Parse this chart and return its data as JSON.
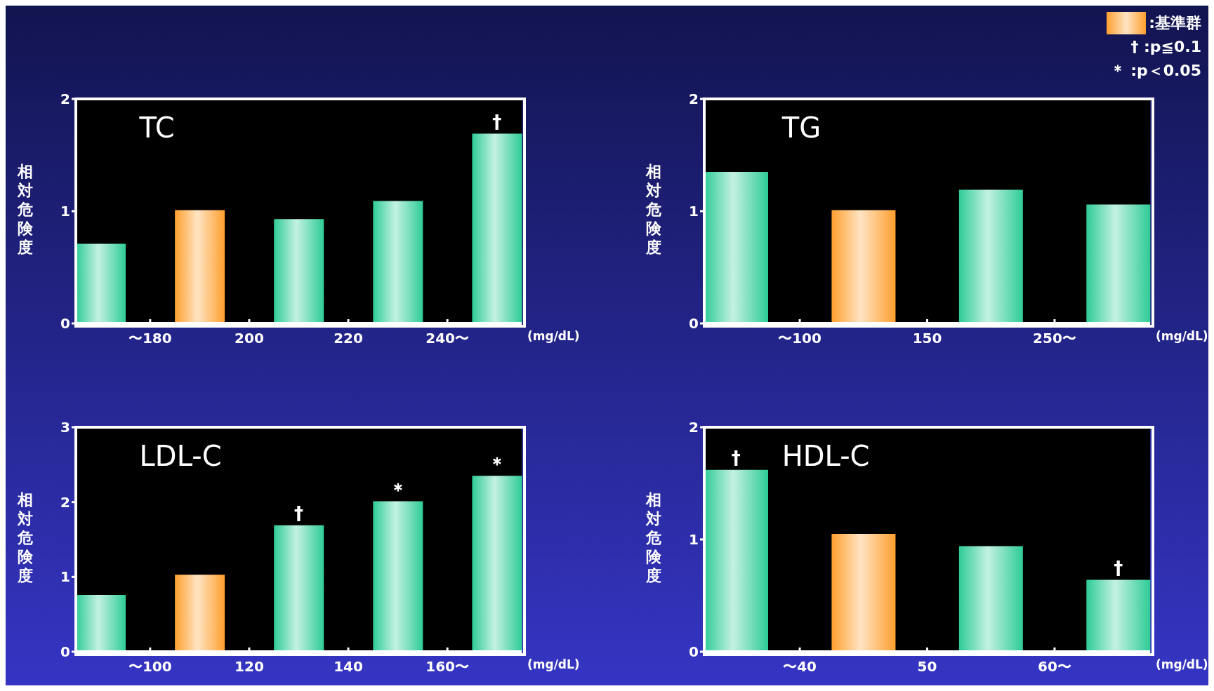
{
  "chart_data": [
    {
      "type": "bar",
      "title": "TC",
      "ylabel": "相対危険度",
      "xlabel": "(mg/dL)",
      "categories": [
        null,
        "〜180",
        null,
        "200",
        null,
        "220",
        null,
        "240〜",
        null
      ],
      "ylim": [
        0,
        2
      ],
      "yticks": [
        0,
        1,
        2
      ],
      "values": [
        0.71,
        null,
        1.01,
        null,
        0.93,
        null,
        1.09,
        null,
        1.69
      ],
      "colors": [
        "#2ecc96",
        null,
        "#ff9f2e",
        null,
        "#2ecc96",
        null,
        "#2ecc96",
        null,
        "#2ecc96"
      ],
      "annotations": [
        {
          "text": "†",
          "y": 1.69
        }
      ]
    },
    {
      "type": "bar",
      "title": "TG",
      "ylabel": "相対危険度",
      "xlabel": "(mg/dL)",
      "categories": [
        null,
        "〜100",
        null,
        "150",
        null,
        "250〜",
        null
      ],
      "ylim": [
        0,
        2
      ],
      "yticks": [
        0,
        1,
        2
      ],
      "values": [
        1.35,
        null,
        1.01,
        null,
        1.19,
        null,
        1.06
      ],
      "colors": [
        "#2ecc96",
        null,
        "#ff9f2e",
        null,
        "#2ecc96",
        null,
        "#2ecc96"
      ]
    },
    {
      "type": "bar",
      "title": "LDL-C",
      "ylabel": "相対危険度",
      "xlabel": "(mg/dL)",
      "categories": [
        null,
        "〜100",
        null,
        "120",
        null,
        "140",
        null,
        "160〜",
        null
      ],
      "ylim": [
        0,
        3
      ],
      "yticks": [
        0,
        1,
        2,
        3
      ],
      "values": [
        0.76,
        null,
        1.03,
        null,
        1.69,
        null,
        2.01,
        null,
        2.35
      ],
      "colors": [
        "#2ecc96",
        null,
        "#ff9f2e",
        null,
        "#2ecc96",
        null,
        "#2ecc96",
        null,
        "#2ecc96"
      ],
      "annotations": [
        {
          "text": "†",
          "y": 1.69
        },
        {
          "text": "＊",
          "y": 2.01
        },
        {
          "text": "＊",
          "y": 2.35
        }
      ]
    },
    {
      "type": "bar",
      "title": "HDL-C",
      "ylabel": "相対危険度",
      "xlabel": "(mg/dL)",
      "categories": [
        null,
        "〜40",
        null,
        "50",
        null,
        "60〜",
        null
      ],
      "ylim": [
        0,
        2
      ],
      "yticks": [
        0,
        1,
        2
      ],
      "values": [
        1.62,
        null,
        1.05,
        null,
        0.94,
        null,
        0.64
      ],
      "colors": [
        "#2ecc96",
        null,
        "#ff9f2e",
        null,
        "#2ecc96",
        null,
        "#2ecc96"
      ],
      "annotations": [
        {
          "text": "†",
          "y": 1.62
        },
        {
          "text": "†",
          "y": 0.64
        }
      ]
    },
    {
      "type": "other",
      "color": "#ff9f2e",
      "annotations": [
        ":基準群",
        "†  :p≦0.1",
        "＊ :p＜0.05"
      ]
    }
  ]
}
